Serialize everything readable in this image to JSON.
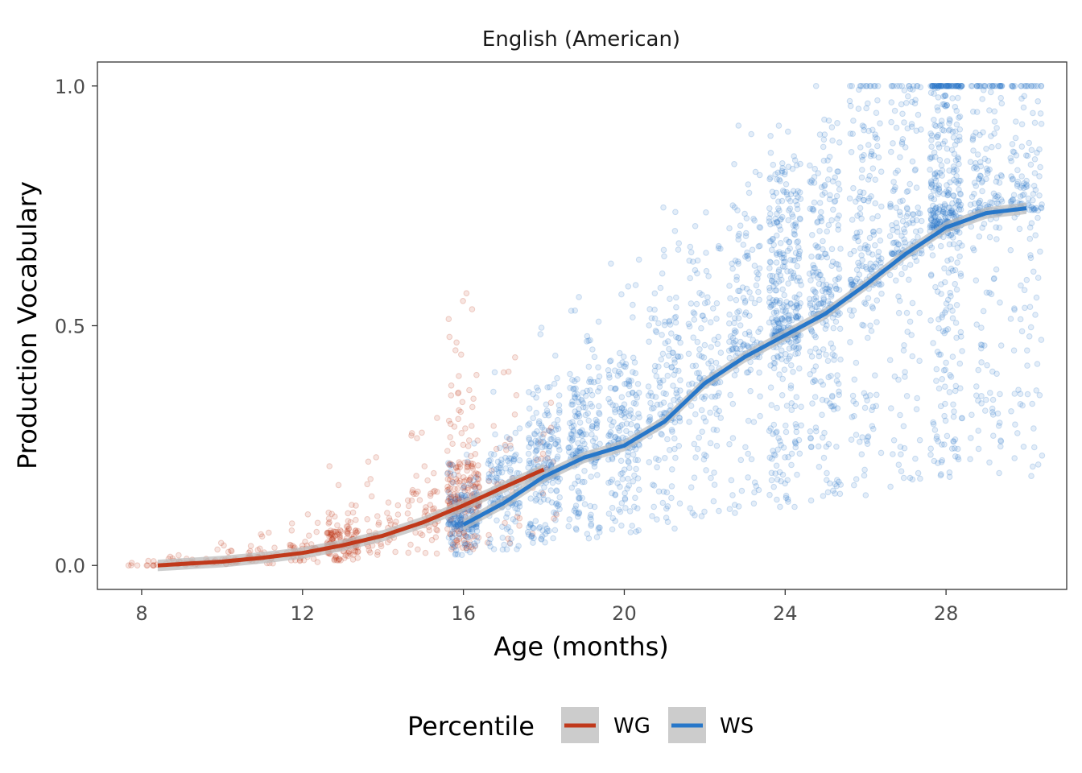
{
  "chart_data": {
    "type": "scatter",
    "title": "English (American)",
    "xlabel": "Age (months)",
    "ylabel": "Production Vocabulary",
    "xlim": [
      6.9,
      31.0
    ],
    "ylim": [
      -0.05,
      1.05
    ],
    "x_ticks": [
      8,
      12,
      16,
      20,
      24,
      28
    ],
    "y_ticks": [
      0.0,
      0.5,
      1.0
    ],
    "x_tick_labels": [
      "8",
      "12",
      "16",
      "20",
      "24",
      "28"
    ],
    "y_tick_labels": [
      "0.0",
      "0.5",
      "1.0"
    ],
    "grid": false,
    "legend": {
      "title": "Percentile",
      "placement": "bottom",
      "entries": [
        "WG",
        "WS"
      ]
    },
    "colors": {
      "WG": "#c0391b",
      "WS": "#2777c9",
      "ribbon": "#bdbdbd"
    },
    "series": [
      {
        "name": "WG",
        "ages": [
          8,
          9,
          10,
          11,
          12,
          13,
          14,
          15,
          16,
          17,
          18
        ],
        "points_per_age": [
          12,
          25,
          35,
          40,
          45,
          160,
          50,
          60,
          240,
          30,
          18
        ],
        "spread": [
          0.01,
          0.02,
          0.03,
          0.05,
          0.07,
          0.1,
          0.12,
          0.2,
          0.28,
          0.25,
          0.25
        ],
        "trend": [
          [
            8.4,
            0.0
          ],
          [
            9,
            0.003
          ],
          [
            10,
            0.008
          ],
          [
            11,
            0.016
          ],
          [
            12,
            0.026
          ],
          [
            13,
            0.042
          ],
          [
            14,
            0.062
          ],
          [
            15,
            0.09
          ],
          [
            16,
            0.125
          ],
          [
            17,
            0.163
          ],
          [
            18,
            0.2
          ]
        ]
      },
      {
        "name": "WS",
        "ages": [
          16,
          17,
          18,
          19,
          20,
          21,
          22,
          23,
          24,
          25,
          26,
          27,
          28,
          29,
          30
        ],
        "points_per_age": [
          180,
          140,
          220,
          200,
          180,
          150,
          130,
          160,
          380,
          250,
          200,
          180,
          460,
          200,
          160
        ],
        "spread": [
          0.12,
          0.18,
          0.22,
          0.26,
          0.3,
          0.3,
          0.33,
          0.34,
          0.33,
          0.32,
          0.3,
          0.28,
          0.25,
          0.22,
          0.2
        ],
        "trend": [
          [
            16,
            0.085
          ],
          [
            17,
            0.13
          ],
          [
            18,
            0.185
          ],
          [
            19,
            0.225
          ],
          [
            20,
            0.25
          ],
          [
            21,
            0.3
          ],
          [
            22,
            0.38
          ],
          [
            23,
            0.435
          ],
          [
            24,
            0.48
          ],
          [
            25,
            0.525
          ],
          [
            26,
            0.585
          ],
          [
            27,
            0.65
          ],
          [
            28,
            0.705
          ],
          [
            29,
            0.735
          ],
          [
            30,
            0.745
          ]
        ]
      }
    ]
  }
}
